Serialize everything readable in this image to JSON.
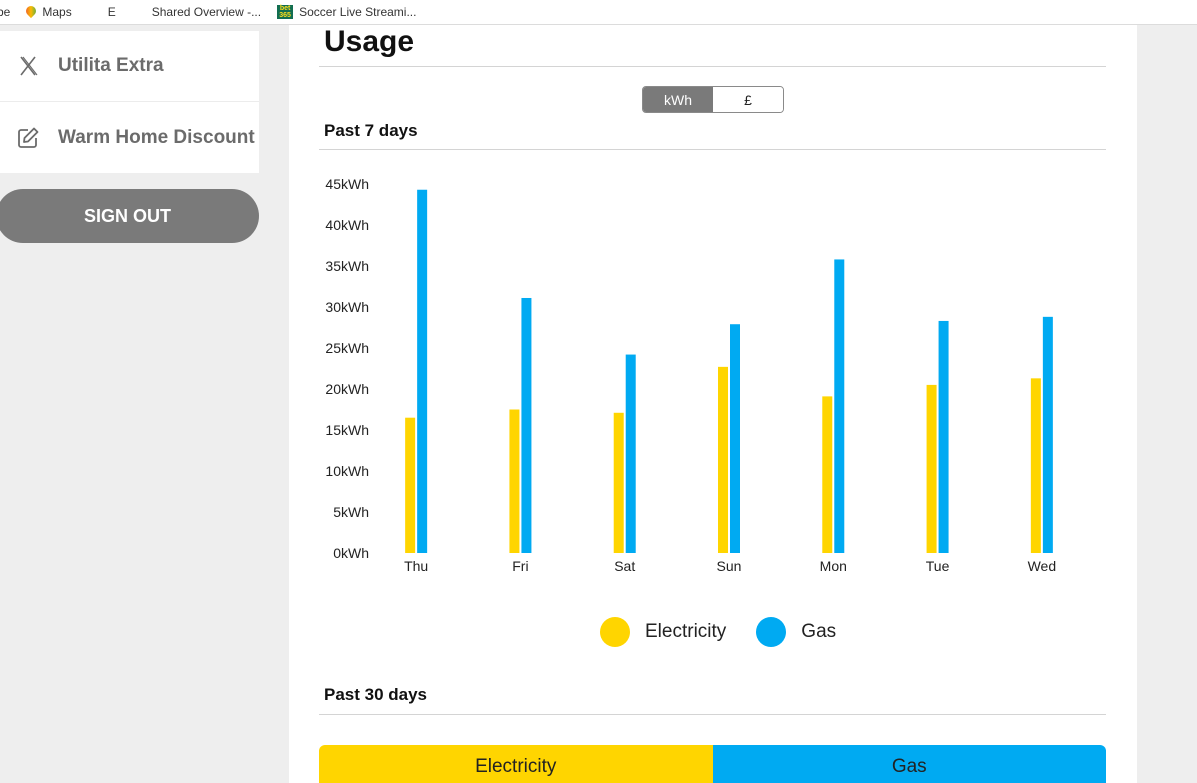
{
  "bookmarks": [
    {
      "label": "be",
      "icon": "partial-icon"
    },
    {
      "label": "Maps",
      "icon": "maps-pin-icon"
    },
    {
      "label": "E",
      "icon": "colored-bars-icon"
    },
    {
      "label": "Shared Overview -...",
      "icon": "soundwave-icon"
    },
    {
      "label": "Soccer Live Streami...",
      "icon": "bet365-icon"
    }
  ],
  "sidebar": {
    "items": [
      {
        "label": "Utilita Extra",
        "icon": "utilita-x-icon"
      },
      {
        "label": "Warm Home Discount",
        "icon": "edit-icon"
      }
    ],
    "sign_out_label": "SIGN OUT"
  },
  "usage": {
    "title": "Usage",
    "unit_toggle": {
      "options": [
        "kWh",
        "£"
      ],
      "selected": "kWh"
    },
    "past7_title": "Past 7 days",
    "past30_title": "Past 30 days",
    "past30_tabs": [
      "Electricity",
      "Gas"
    ]
  },
  "colors": {
    "electricity": "#ffd500",
    "gas": "#00aaf2"
  },
  "chart_data": {
    "type": "bar",
    "categories": [
      "Thu",
      "Fri",
      "Sat",
      "Sun",
      "Mon",
      "Tue",
      "Wed"
    ],
    "series": [
      {
        "name": "Electricity",
        "values": [
          16.5,
          17.5,
          17.1,
          22.7,
          19.1,
          20.5,
          21.3
        ]
      },
      {
        "name": "Gas",
        "values": [
          44.3,
          31.1,
          24.2,
          27.9,
          35.8,
          28.3,
          28.8
        ]
      }
    ],
    "yticks": [
      "0kWh",
      "5kWh",
      "10kWh",
      "15kWh",
      "20kWh",
      "25kWh",
      "30kWh",
      "35kWh",
      "40kWh",
      "45kWh"
    ],
    "ylim": [
      0,
      45
    ],
    "grid": false,
    "legend": "bottom-center"
  }
}
